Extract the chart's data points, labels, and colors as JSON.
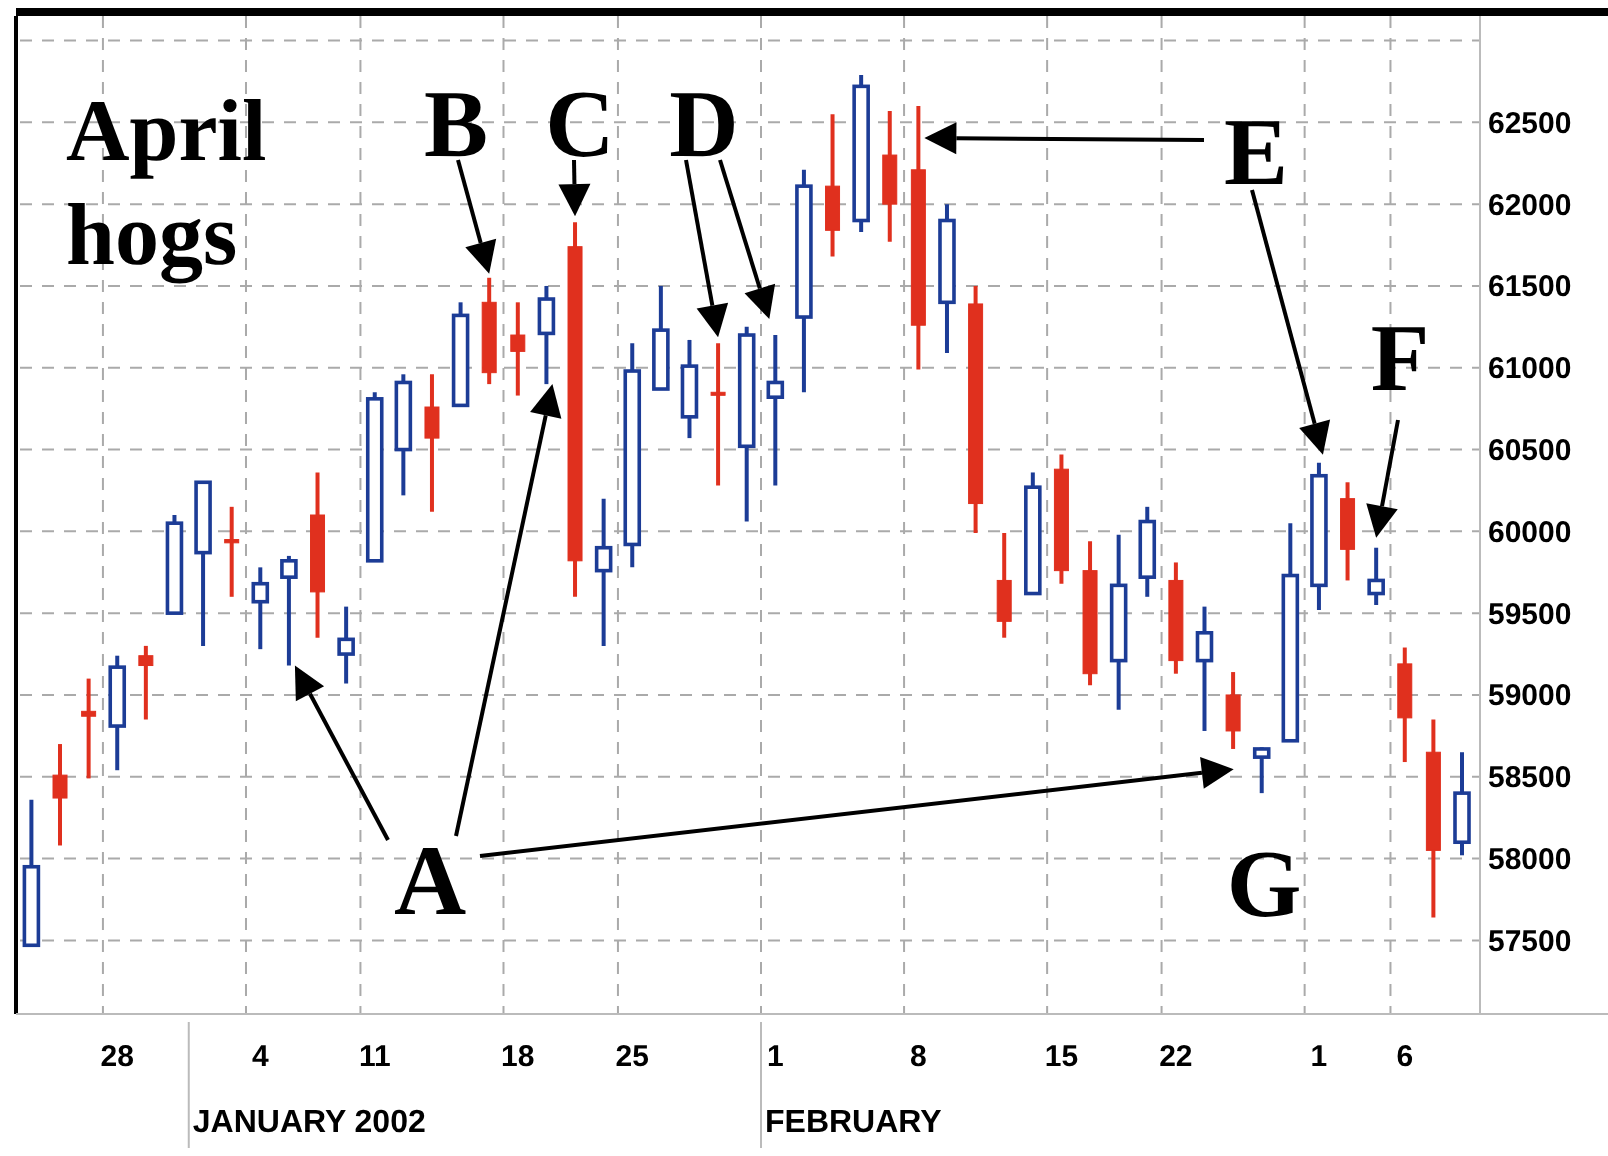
{
  "chart_data": {
    "type": "candlestick",
    "title": "April hogs",
    "categories": [
      null,
      null,
      null,
      "28",
      null,
      null,
      null,
      null,
      "4",
      null,
      null,
      null,
      "11",
      null,
      null,
      null,
      null,
      "18",
      null,
      null,
      null,
      "25",
      null,
      null,
      null,
      null,
      "1",
      null,
      null,
      null,
      null,
      "8",
      null,
      null,
      null,
      null,
      "15",
      null,
      null,
      null,
      "22",
      null,
      null,
      null,
      null,
      "1",
      null,
      null,
      "6",
      null,
      null
    ],
    "ohlc": [
      [
        57470,
        58360,
        57470,
        57950
      ],
      [
        58510,
        58700,
        58080,
        58370
      ],
      [
        58900,
        59100,
        58490,
        58870
      ],
      [
        58810,
        59240,
        58540,
        59170
      ],
      [
        59240,
        59300,
        58850,
        59180
      ],
      [
        59500,
        60100,
        59500,
        60050
      ],
      [
        59870,
        60300,
        59300,
        60300
      ],
      [
        59950,
        60150,
        59600,
        59930
      ],
      [
        59570,
        59780,
        59280,
        59680
      ],
      [
        59720,
        59850,
        59180,
        59820
      ],
      [
        60100,
        60360,
        59350,
        59630
      ],
      [
        59250,
        59540,
        59070,
        59340
      ],
      [
        59820,
        60850,
        59820,
        60810
      ],
      [
        60500,
        60960,
        60220,
        60910
      ],
      [
        60760,
        60960,
        60120,
        60570
      ],
      [
        60770,
        61400,
        60770,
        61320
      ],
      [
        61400,
        61550,
        60900,
        60970
      ],
      [
        61200,
        61400,
        60830,
        61100
      ],
      [
        61210,
        61500,
        60900,
        61420
      ],
      [
        61740,
        61890,
        59600,
        59820
      ],
      [
        59760,
        60200,
        59300,
        59900
      ],
      [
        59920,
        61150,
        59780,
        60980
      ],
      [
        60870,
        61500,
        60870,
        61230
      ],
      [
        60700,
        61170,
        60570,
        61010
      ],
      [
        60850,
        61150,
        60280,
        60840
      ],
      [
        60520,
        61250,
        60060,
        61200
      ],
      [
        60820,
        61200,
        60280,
        60910
      ],
      [
        61310,
        62210,
        60850,
        62110
      ],
      [
        62110,
        62550,
        61680,
        61840
      ],
      [
        61900,
        62790,
        61830,
        62720
      ],
      [
        62300,
        62570,
        61770,
        62000
      ],
      [
        62210,
        62600,
        60990,
        61260
      ],
      [
        61400,
        62000,
        61090,
        61900
      ],
      [
        61390,
        61500,
        59990,
        60170
      ],
      [
        59700,
        59990,
        59350,
        59450
      ],
      [
        59620,
        60360,
        59620,
        60270
      ],
      [
        60380,
        60470,
        59680,
        59760
      ],
      [
        59760,
        59940,
        59060,
        59130
      ],
      [
        59210,
        59980,
        58910,
        59670
      ],
      [
        59720,
        60150,
        59600,
        60060
      ],
      [
        59700,
        59810,
        59130,
        59210
      ],
      [
        59210,
        59540,
        58780,
        59380
      ],
      [
        59000,
        59140,
        58670,
        58780
      ],
      [
        58620,
        58680,
        58400,
        58670
      ],
      [
        58720,
        60050,
        58720,
        59730
      ],
      [
        59670,
        60420,
        59520,
        60340
      ],
      [
        60200,
        60300,
        59700,
        59890
      ],
      [
        59620,
        59900,
        59550,
        59700
      ],
      [
        59190,
        59290,
        58590,
        58860
      ],
      [
        58650,
        58850,
        57640,
        58050
      ],
      [
        58100,
        58650,
        58020,
        58400
      ]
    ],
    "colors": [
      "#1c3c96",
      "#e0301e",
      "#e0301e",
      "#1c3c96",
      "#e0301e",
      "#1c3c96",
      "#1c3c96",
      "#e0301e",
      "#1c3c96",
      "#1c3c96",
      "#e0301e",
      "#1c3c96",
      "#1c3c96",
      "#1c3c96",
      "#e0301e",
      "#1c3c96",
      "#e0301e",
      "#e0301e",
      "#1c3c96",
      "#e0301e",
      "#1c3c96",
      "#1c3c96",
      "#1c3c96",
      "#1c3c96",
      "#e0301e",
      "#1c3c96",
      "#1c3c96",
      "#1c3c96",
      "#e0301e",
      "#1c3c96",
      "#e0301e",
      "#e0301e",
      "#1c3c96",
      "#e0301e",
      "#e0301e",
      "#1c3c96",
      "#e0301e",
      "#e0301e",
      "#1c3c96",
      "#1c3c96",
      "#e0301e",
      "#1c3c96",
      "#e0301e",
      "#1c3c96",
      "#1c3c96",
      "#1c3c96",
      "#e0301e",
      "#1c3c96",
      "#e0301e",
      "#e0301e",
      "#1c3c96"
    ],
    "ylim": [
      57050,
      63150
    ],
    "yticks": [
      57500,
      58000,
      58500,
      59000,
      59500,
      60000,
      60500,
      61000,
      61500,
      62000,
      62500,
      {
        "value": 63000,
        "label": null
      }
    ],
    "grid": true,
    "annotations": [
      "A",
      "B",
      "C",
      "D",
      "E",
      "F",
      "G",
      "JANUARY 2002",
      "FEBRUARY"
    ]
  }
}
